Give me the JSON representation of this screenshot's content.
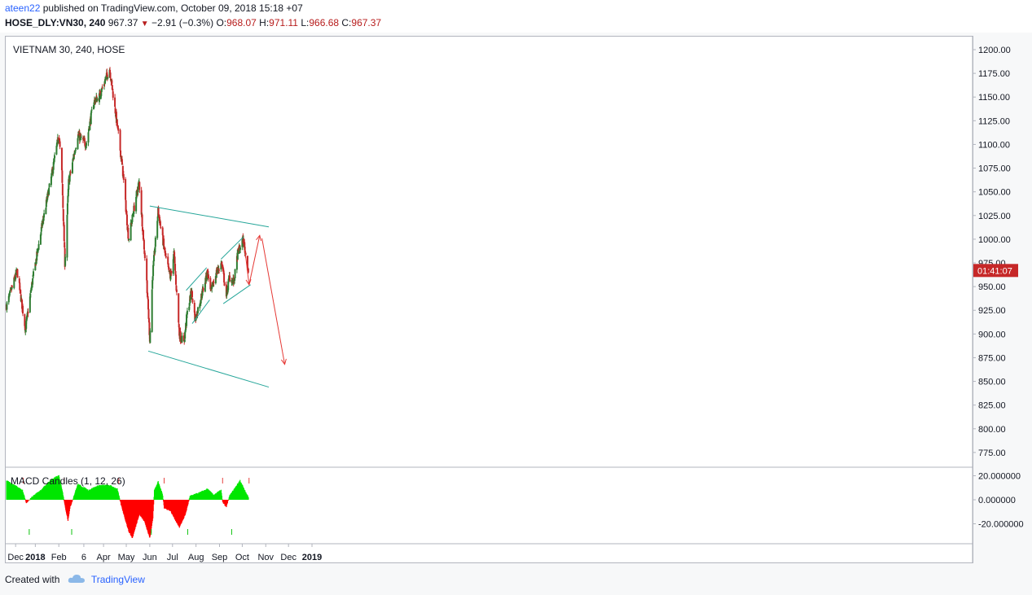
{
  "header": {
    "author": "ateen22",
    "published_text": "published on TradingView.com, October 09, 2018 15:18 +07",
    "symbol": "HOSE_DLY:VN30, 240",
    "last": "967.37",
    "change": "−2.91 (−0.3%)",
    "o_label": "O:",
    "o": "968.07",
    "h_label": "H:",
    "h": "971.11",
    "l_label": "L:",
    "l": "966.68",
    "c_label": "C:",
    "c": "967.37"
  },
  "footer": {
    "created_with": "Created with",
    "brand": "TradingView"
  },
  "colors": {
    "up": "#2e7d32",
    "down": "#c62828",
    "channel": "#26a69a",
    "arrow": "#e53935",
    "macd_pos": "#00e600",
    "macd_neg": "#ff0000",
    "price_tag": "#c62828"
  },
  "chart_data": [
    {
      "type": "candlestick",
      "title": "VIETNAM 30, 240, HOSE",
      "x_ticks": [
        "Dec",
        "2018",
        "Feb",
        "6",
        "Apr",
        "May",
        "Jun",
        "Jul",
        "Aug",
        "Sep",
        "Oct",
        "Nov",
        "Dec",
        "2019"
      ],
      "y_ticks": [
        "1200.00",
        "1175.00",
        "1150.00",
        "1125.00",
        "1100.00",
        "1075.00",
        "1050.00",
        "1025.00",
        "1000.00",
        "975.00",
        "950.00",
        "925.00",
        "900.00",
        "875.00",
        "850.00",
        "825.00",
        "800.00",
        "775.00"
      ],
      "ylim": [
        760,
        1210
      ],
      "last_price_label": "01:41:07",
      "anchors": [
        {
          "date": "2017-11-24",
          "close": 930
        },
        {
          "date": "2017-12-08",
          "close": 966
        },
        {
          "date": "2017-12-19",
          "close": 905
        },
        {
          "date": "2017-12-28",
          "close": 955
        },
        {
          "date": "2018-01-10",
          "close": 1015
        },
        {
          "date": "2018-01-22",
          "close": 1065
        },
        {
          "date": "2018-02-01",
          "close": 1110
        },
        {
          "date": "2018-02-05",
          "close": 1070
        },
        {
          "date": "2018-02-09",
          "close": 975
        },
        {
          "date": "2018-02-14",
          "close": 1060
        },
        {
          "date": "2018-02-26",
          "close": 1110
        },
        {
          "date": "2018-03-09",
          "close": 1100
        },
        {
          "date": "2018-03-19",
          "close": 1145
        },
        {
          "date": "2018-03-26",
          "close": 1150
        },
        {
          "date": "2018-04-09",
          "close": 1180
        },
        {
          "date": "2018-04-19",
          "close": 1120
        },
        {
          "date": "2018-04-26",
          "close": 1075
        },
        {
          "date": "2018-05-04",
          "close": 1000
        },
        {
          "date": "2018-05-14",
          "close": 1045
        },
        {
          "date": "2018-05-18",
          "close": 1060
        },
        {
          "date": "2018-05-28",
          "close": 955
        },
        {
          "date": "2018-06-01",
          "close": 895
        },
        {
          "date": "2018-06-05",
          "close": 965
        },
        {
          "date": "2018-06-12",
          "close": 1030
        },
        {
          "date": "2018-06-22",
          "close": 980
        },
        {
          "date": "2018-06-28",
          "close": 960
        },
        {
          "date": "2018-07-03",
          "close": 985
        },
        {
          "date": "2018-07-10",
          "close": 900
        },
        {
          "date": "2018-07-16",
          "close": 890
        },
        {
          "date": "2018-07-20",
          "close": 920
        },
        {
          "date": "2018-07-26",
          "close": 945
        },
        {
          "date": "2018-07-31",
          "close": 915
        },
        {
          "date": "2018-08-08",
          "close": 940
        },
        {
          "date": "2018-08-16",
          "close": 965
        },
        {
          "date": "2018-08-21",
          "close": 945
        },
        {
          "date": "2018-08-28",
          "close": 965
        },
        {
          "date": "2018-09-04",
          "close": 975
        },
        {
          "date": "2018-09-10",
          "close": 940
        },
        {
          "date": "2018-09-14",
          "close": 960
        },
        {
          "date": "2018-09-20",
          "close": 955
        },
        {
          "date": "2018-09-25",
          "close": 985
        },
        {
          "date": "2018-10-02",
          "close": 1000
        },
        {
          "date": "2018-10-09",
          "close": 967
        }
      ],
      "channels": [
        {
          "x1": "2018-06-01",
          "y1": 1035,
          "x2": "2018-11-05",
          "y2": 1013
        },
        {
          "x1": "2018-05-30",
          "y1": 882,
          "x2": "2018-11-05",
          "y2": 844
        },
        {
          "x1": "2018-07-19",
          "y1": 946,
          "x2": "2018-08-15",
          "y2": 970
        },
        {
          "x1": "2018-07-27",
          "y1": 911,
          "x2": "2018-08-19",
          "y2": 936
        },
        {
          "x1": "2018-09-03",
          "y1": 979,
          "x2": "2018-10-02",
          "y2": 1002
        },
        {
          "x1": "2018-09-06",
          "y1": 932,
          "x2": "2018-10-12",
          "y2": 952
        }
      ],
      "projection": [
        {
          "x": "2018-10-04",
          "y": 992
        },
        {
          "x": "2018-10-10",
          "y": 952
        },
        {
          "x": "2018-10-24",
          "y": 1004
        },
        {
          "x": "2018-10-27",
          "y": 1001
        },
        {
          "x": "2018-11-26",
          "y": 868
        }
      ]
    },
    {
      "type": "area",
      "title": "MACD Candles (1, 12, 26)",
      "y_ticks": [
        "20.000000",
        "0.000000",
        "-20.000000"
      ],
      "ylim": [
        -32,
        24
      ],
      "anchors": [
        {
          "date": "2017-11-24",
          "value": 16
        },
        {
          "date": "2017-12-15",
          "value": 8
        },
        {
          "date": "2017-12-20",
          "value": -3
        },
        {
          "date": "2017-12-27",
          "value": 2
        },
        {
          "date": "2018-01-10",
          "value": 9
        },
        {
          "date": "2018-01-22",
          "value": 17
        },
        {
          "date": "2018-02-01",
          "value": 20
        },
        {
          "date": "2018-02-07",
          "value": 3
        },
        {
          "date": "2018-02-09",
          "value": -5
        },
        {
          "date": "2018-02-13",
          "value": -17
        },
        {
          "date": "2018-02-16",
          "value": -6
        },
        {
          "date": "2018-02-26",
          "value": 13
        },
        {
          "date": "2018-03-12",
          "value": 8
        },
        {
          "date": "2018-03-26",
          "value": 12
        },
        {
          "date": "2018-04-09",
          "value": 12
        },
        {
          "date": "2018-04-19",
          "value": 9
        },
        {
          "date": "2018-04-24",
          "value": -4
        },
        {
          "date": "2018-05-04",
          "value": -26
        },
        {
          "date": "2018-05-09",
          "value": -32
        },
        {
          "date": "2018-05-18",
          "value": -12
        },
        {
          "date": "2018-05-25",
          "value": -18
        },
        {
          "date": "2018-06-01",
          "value": -32
        },
        {
          "date": "2018-06-05",
          "value": -15
        },
        {
          "date": "2018-06-07",
          "value": 8
        },
        {
          "date": "2018-06-12",
          "value": 15
        },
        {
          "date": "2018-06-18",
          "value": 4
        },
        {
          "date": "2018-06-20",
          "value": -7
        },
        {
          "date": "2018-06-28",
          "value": -9
        },
        {
          "date": "2018-07-10",
          "value": -23
        },
        {
          "date": "2018-07-18",
          "value": -12
        },
        {
          "date": "2018-07-24",
          "value": 3
        },
        {
          "date": "2018-08-06",
          "value": 6
        },
        {
          "date": "2018-08-16",
          "value": 9
        },
        {
          "date": "2018-08-24",
          "value": 4
        },
        {
          "date": "2018-09-03",
          "value": 8
        },
        {
          "date": "2018-09-05",
          "value": -2
        },
        {
          "date": "2018-09-10",
          "value": -6
        },
        {
          "date": "2018-09-14",
          "value": 3
        },
        {
          "date": "2018-09-28",
          "value": 16
        },
        {
          "date": "2018-10-09",
          "value": 2
        }
      ],
      "signals": [
        {
          "date": "2017-12-16",
          "kind": "sell"
        },
        {
          "date": "2018-02-08",
          "kind": "sell"
        },
        {
          "date": "2018-04-21",
          "kind": "sell"
        },
        {
          "date": "2018-06-20",
          "kind": "sell"
        },
        {
          "date": "2018-09-05",
          "kind": "sell"
        },
        {
          "date": "2018-10-10",
          "kind": "sell"
        },
        {
          "date": "2017-12-24",
          "kind": "buy"
        },
        {
          "date": "2018-02-18",
          "kind": "buy"
        },
        {
          "date": "2018-06-03",
          "kind": "buy"
        },
        {
          "date": "2018-07-21",
          "kind": "buy"
        },
        {
          "date": "2018-09-17",
          "kind": "buy"
        }
      ]
    }
  ]
}
